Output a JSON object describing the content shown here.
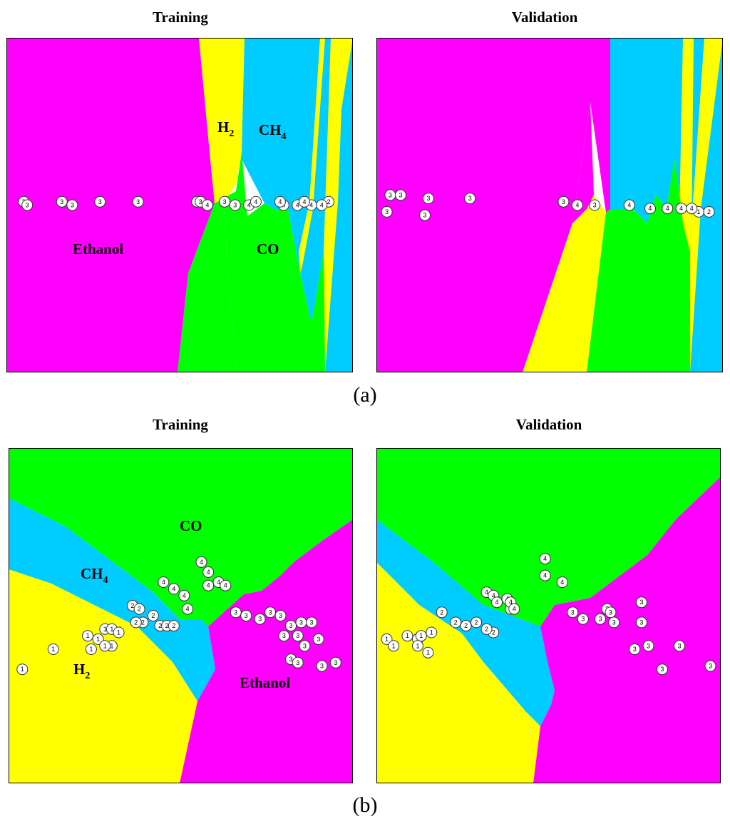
{
  "colors": {
    "Ethanol": "#ff00ff",
    "H2": "#ffff00",
    "CH4": "#00ccff",
    "CO": "#00ff00",
    "border": "#000000",
    "point_fill": "#ffffff"
  },
  "captions": {
    "a": "(a)",
    "b": "(b)"
  },
  "chart_data": [
    {
      "id": "a-training",
      "type": "scatter",
      "title": "Training",
      "region_labels": [
        "Ethanol",
        "H",
        "CH",
        "CO"
      ],
      "series": [
        {
          "name": "1",
          "points": []
        },
        {
          "name": "2",
          "points": [
            [
              0.93,
              0.49
            ]
          ]
        },
        {
          "name": "3",
          "points": [
            [
              0.05,
              0.49
            ],
            [
              0.06,
              0.5
            ],
            [
              0.16,
              0.49
            ],
            [
              0.19,
              0.5
            ],
            [
              0.27,
              0.49
            ],
            [
              0.38,
              0.49
            ],
            [
              0.63,
              0.49
            ],
            [
              0.66,
              0.5
            ],
            [
              0.55,
              0.49
            ],
            [
              0.56,
              0.49
            ]
          ]
        },
        {
          "name": "4",
          "points": [
            [
              0.58,
              0.5
            ],
            [
              0.7,
              0.5
            ],
            [
              0.8,
              0.5
            ],
            [
              0.84,
              0.5
            ],
            [
              0.88,
              0.5
            ],
            [
              0.91,
              0.5
            ],
            [
              0.72,
              0.49
            ],
            [
              0.79,
              0.49
            ],
            [
              0.86,
              0.49
            ]
          ]
        }
      ]
    },
    {
      "id": "a-validation",
      "type": "scatter",
      "title": "Validation",
      "series": [
        {
          "name": "1",
          "points": [
            [
              0.93,
              0.52
            ]
          ]
        },
        {
          "name": "2",
          "points": [
            [
              0.96,
              0.52
            ]
          ]
        },
        {
          "name": "3",
          "points": [
            [
              0.04,
              0.47
            ],
            [
              0.07,
              0.47
            ],
            [
              0.03,
              0.52
            ],
            [
              0.15,
              0.48
            ],
            [
              0.14,
              0.53
            ],
            [
              0.27,
              0.48
            ],
            [
              0.54,
              0.49
            ],
            [
              0.63,
              0.5
            ]
          ]
        },
        {
          "name": "4",
          "points": [
            [
              0.58,
              0.5
            ],
            [
              0.73,
              0.5
            ],
            [
              0.79,
              0.51
            ],
            [
              0.84,
              0.51
            ],
            [
              0.88,
              0.51
            ],
            [
              0.91,
              0.51
            ]
          ]
        }
      ]
    },
    {
      "id": "b-training",
      "type": "scatter",
      "title": "Training",
      "region_labels": [
        "CO",
        "CH",
        "H",
        "Ethanol"
      ],
      "series": [
        {
          "name": "1",
          "points": [
            [
              0.04,
              0.66
            ],
            [
              0.13,
              0.6
            ],
            [
              0.23,
              0.56
            ],
            [
              0.26,
              0.57
            ],
            [
              0.28,
              0.54
            ],
            [
              0.3,
              0.54
            ],
            [
              0.32,
              0.55
            ],
            [
              0.3,
              0.59
            ],
            [
              0.28,
              0.59
            ],
            [
              0.24,
              0.6
            ]
          ]
        },
        {
          "name": "2",
          "points": [
            [
              0.36,
              0.47
            ],
            [
              0.38,
              0.48
            ],
            [
              0.39,
              0.52
            ],
            [
              0.42,
              0.5
            ],
            [
              0.44,
              0.53
            ],
            [
              0.46,
              0.53
            ],
            [
              0.48,
              0.53
            ],
            [
              0.37,
              0.52
            ]
          ]
        },
        {
          "name": "3",
          "points": [
            [
              0.66,
              0.49
            ],
            [
              0.69,
              0.5
            ],
            [
              0.73,
              0.51
            ],
            [
              0.76,
              0.49
            ],
            [
              0.79,
              0.5
            ],
            [
              0.82,
              0.53
            ],
            [
              0.85,
              0.52
            ],
            [
              0.88,
              0.52
            ],
            [
              0.9,
              0.57
            ],
            [
              0.86,
              0.59
            ],
            [
              0.82,
              0.63
            ],
            [
              0.84,
              0.64
            ],
            [
              0.95,
              0.64
            ],
            [
              0.91,
              0.65
            ],
            [
              0.8,
              0.56
            ],
            [
              0.84,
              0.56
            ]
          ]
        },
        {
          "name": "4",
          "points": [
            [
              0.45,
              0.4
            ],
            [
              0.48,
              0.42
            ],
            [
              0.51,
              0.44
            ],
            [
              0.56,
              0.34
            ],
            [
              0.58,
              0.37
            ],
            [
              0.61,
              0.4
            ],
            [
              0.58,
              0.41
            ],
            [
              0.63,
              0.41
            ],
            [
              0.52,
              0.48
            ]
          ]
        }
      ]
    },
    {
      "id": "b-validation",
      "type": "scatter",
      "title": "Validation",
      "series": [
        {
          "name": "1",
          "points": [
            [
              0.03,
              0.57
            ],
            [
              0.05,
              0.59
            ],
            [
              0.09,
              0.56
            ],
            [
              0.12,
              0.57
            ],
            [
              0.13,
              0.56
            ],
            [
              0.15,
              0.61
            ],
            [
              0.16,
              0.55
            ],
            [
              0.12,
              0.59
            ]
          ]
        },
        {
          "name": "2",
          "points": [
            [
              0.19,
              0.49
            ],
            [
              0.23,
              0.52
            ],
            [
              0.26,
              0.53
            ],
            [
              0.29,
              0.52
            ],
            [
              0.34,
              0.55
            ],
            [
              0.32,
              0.54
            ],
            [
              0.39,
              0.48
            ]
          ]
        },
        {
          "name": "3",
          "points": [
            [
              0.57,
              0.49
            ],
            [
              0.6,
              0.51
            ],
            [
              0.65,
              0.51
            ],
            [
              0.67,
              0.48
            ],
            [
              0.69,
              0.52
            ],
            [
              0.68,
              0.49
            ],
            [
              0.77,
              0.46
            ],
            [
              0.77,
              0.52
            ],
            [
              0.75,
              0.6
            ],
            [
              0.79,
              0.59
            ],
            [
              0.88,
              0.59
            ],
            [
              0.83,
              0.66
            ],
            [
              0.97,
              0.65
            ]
          ]
        },
        {
          "name": "4",
          "points": [
            [
              0.32,
              0.43
            ],
            [
              0.34,
              0.44
            ],
            [
              0.35,
              0.46
            ],
            [
              0.38,
              0.45
            ],
            [
              0.39,
              0.46
            ],
            [
              0.4,
              0.48
            ],
            [
              0.49,
              0.33
            ],
            [
              0.49,
              0.38
            ],
            [
              0.54,
              0.4
            ]
          ]
        }
      ]
    }
  ]
}
